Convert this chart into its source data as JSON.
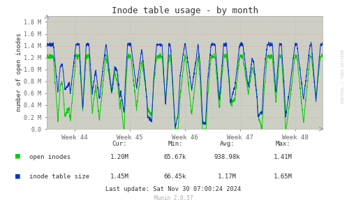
{
  "title": "Inode table usage - by month",
  "ylabel": "number of open inodes",
  "background_color": "#FFFFFF",
  "plot_bg_color": "#CDCFC4",
  "grid_color_h": "#FF9999",
  "grid_color_v": "#AAAAAA",
  "ylim": [
    0,
    1900000
  ],
  "yticks": [
    0,
    200000,
    400000,
    600000,
    800000,
    1000000,
    1200000,
    1400000,
    1600000,
    1800000
  ],
  "ytick_labels": [
    "0.0",
    "0.2 M",
    "0.4 M",
    "0.6 M",
    "0.8 M",
    "1.0 M",
    "1.2 M",
    "1.4 M",
    "1.6 M",
    "1.8 M"
  ],
  "week_labels": [
    "Week 44",
    "Week 45",
    "Week 46",
    "Week 47",
    "Week 48"
  ],
  "legend_entries": [
    "open inodes",
    "inode table size"
  ],
  "stats_labels": [
    "Cur:",
    "Min:",
    "Avg:",
    "Max:"
  ],
  "stats_open": [
    "1.20M",
    "65.67k",
    "938.98k",
    "1.41M"
  ],
  "stats_table": [
    "1.45M",
    "66.45k",
    "1.17M",
    "1.65M"
  ],
  "last_update": "Last update: Sat Nov 30 07:00:24 2024",
  "munin_label": "Munin 2.0.57",
  "rrdtool_label": "RRDTOOL / TOBI OETIKER",
  "green_color": "#00CC00",
  "blue_color": "#0033CC",
  "n_points": 2000,
  "seed": 7
}
